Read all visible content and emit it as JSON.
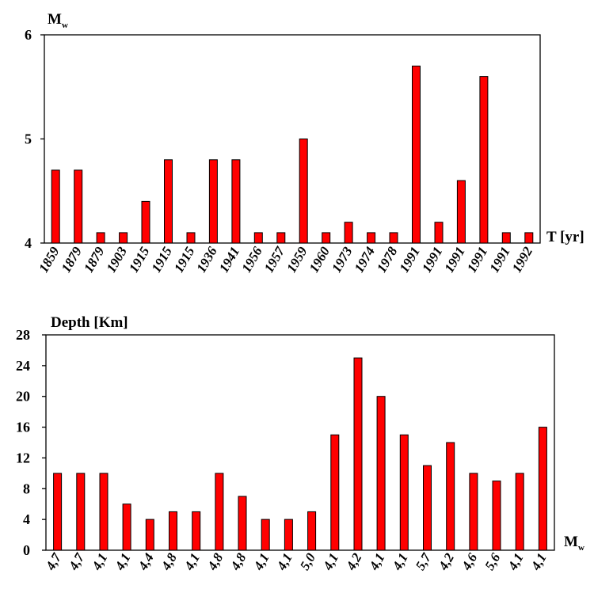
{
  "colors": {
    "bar": "#ff0000",
    "bar_edge": "#000000",
    "axis": "#000000"
  },
  "chart_data": [
    {
      "type": "bar",
      "ylabel": "M",
      "ylabel_sub": "w",
      "xlabel": "T [yr]",
      "ylim": [
        4,
        6
      ],
      "yticks": [
        "4",
        "5",
        "6"
      ],
      "categories": [
        "1859",
        "1879",
        "1879",
        "1903",
        "1915",
        "1915",
        "1915",
        "1936",
        "1941",
        "1956",
        "1957",
        "1959",
        "1960",
        "1973",
        "1974",
        "1978",
        "1991",
        "1991",
        "1991",
        "1991",
        "1991",
        "1992"
      ],
      "values": [
        4.7,
        4.7,
        4.1,
        4.1,
        4.4,
        4.8,
        4.1,
        4.8,
        4.8,
        4.1,
        4.1,
        5.0,
        4.1,
        4.2,
        4.1,
        4.1,
        5.7,
        4.2,
        4.6,
        5.6,
        4.1,
        4.1
      ],
      "grid": false
    },
    {
      "type": "bar",
      "ylabel": "Depth [Km]",
      "xlabel": "M",
      "xlabel_sub": "w",
      "ylim": [
        0,
        28
      ],
      "yticks": [
        "0",
        "4",
        "8",
        "12",
        "16",
        "20",
        "24",
        "28"
      ],
      "categories": [
        "4,7",
        "4,7",
        "4,1",
        "4,1",
        "4,4",
        "4,8",
        "4,1",
        "4,8",
        "4,8",
        "4,1",
        "4,1",
        "5,0",
        "4,1",
        "4,2",
        "4,1",
        "4,1",
        "5,7",
        "4,2",
        "4,6",
        "5,6",
        "4,1",
        "4,1"
      ],
      "values": [
        10,
        10,
        10,
        6,
        4,
        5,
        5,
        10,
        7,
        4,
        4,
        5,
        15,
        25,
        20,
        15,
        11,
        14,
        10,
        9,
        10,
        16
      ],
      "grid": false
    }
  ]
}
